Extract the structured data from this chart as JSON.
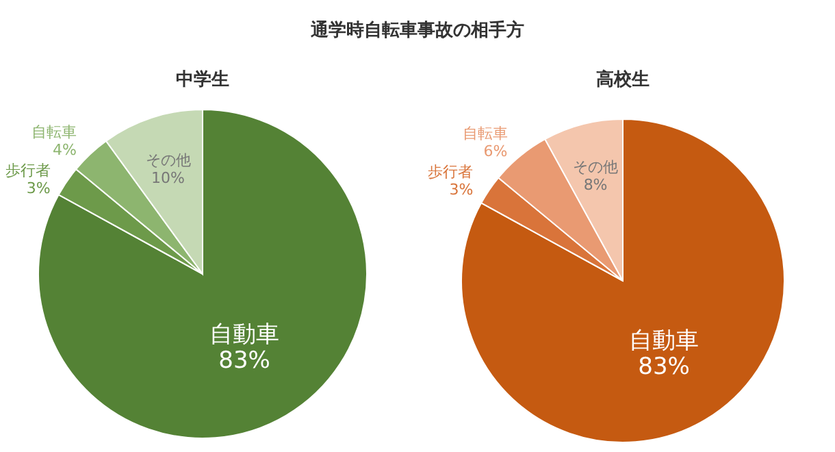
{
  "chart_data": [
    {
      "type": "pie",
      "title": "通学時自転車事故の相手方",
      "subtitle": "中学生",
      "categories": [
        "自動車",
        "歩行者",
        "自転車",
        "その他"
      ],
      "values": [
        83,
        3,
        4,
        10
      ],
      "value_labels": [
        "83%",
        "3%",
        "4%",
        "10%"
      ],
      "colors": [
        "#548235",
        "#6d9a4a",
        "#8db56f",
        "#c5d9b4"
      ]
    },
    {
      "type": "pie",
      "subtitle": "高校生",
      "categories": [
        "自動車",
        "歩行者",
        "自転車",
        "その他"
      ],
      "values": [
        83,
        3,
        6,
        8
      ],
      "value_labels": [
        "83%",
        "3%",
        "6%",
        "8%"
      ],
      "colors": [
        "#c55a11",
        "#d9743a",
        "#e99a72",
        "#f4c6ad"
      ]
    }
  ]
}
